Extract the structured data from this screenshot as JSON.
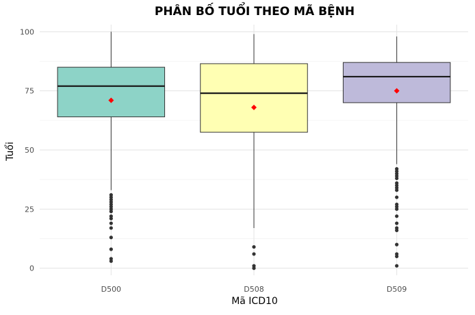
{
  "chart_data": {
    "type": "boxplot",
    "title": "PHÂN BỐ TUỔI THEO MÃ BỆNH",
    "xlabel": "Mã ICD10",
    "ylabel": "Tuổi",
    "ylim": [
      -3,
      103
    ],
    "yticks": [
      0,
      25,
      50,
      75,
      100
    ],
    "grid": true,
    "legend": "none",
    "mean_marker_color": "#ff0000",
    "outlier_color": "#333333",
    "categories": [
      "D500",
      "D508",
      "D509"
    ],
    "boxes": [
      {
        "category": "D500",
        "fill": "#8dd3c7",
        "whisker_low": 33,
        "q1": 64,
        "median": 77,
        "q3": 85,
        "whisker_high": 100,
        "mean": 71,
        "outliers": [
          3,
          4,
          8,
          13,
          17,
          19,
          21,
          22,
          24,
          25,
          26,
          27,
          28,
          29,
          30,
          31
        ]
      },
      {
        "category": "D508",
        "fill": "#ffffb3",
        "whisker_low": 17,
        "q1": 57.5,
        "median": 74,
        "q3": 86.5,
        "whisker_high": 99,
        "mean": 68,
        "outliers": [
          0,
          1,
          6,
          9
        ]
      },
      {
        "category": "D509",
        "fill": "#bebada",
        "whisker_low": 44,
        "q1": 70,
        "median": 81,
        "q3": 87,
        "whisker_high": 98,
        "mean": 75,
        "outliers": [
          1,
          5,
          6,
          10,
          16,
          17,
          19,
          22,
          25,
          26,
          27,
          30,
          33,
          34,
          35,
          36,
          38,
          39,
          40,
          41,
          42
        ]
      }
    ]
  }
}
